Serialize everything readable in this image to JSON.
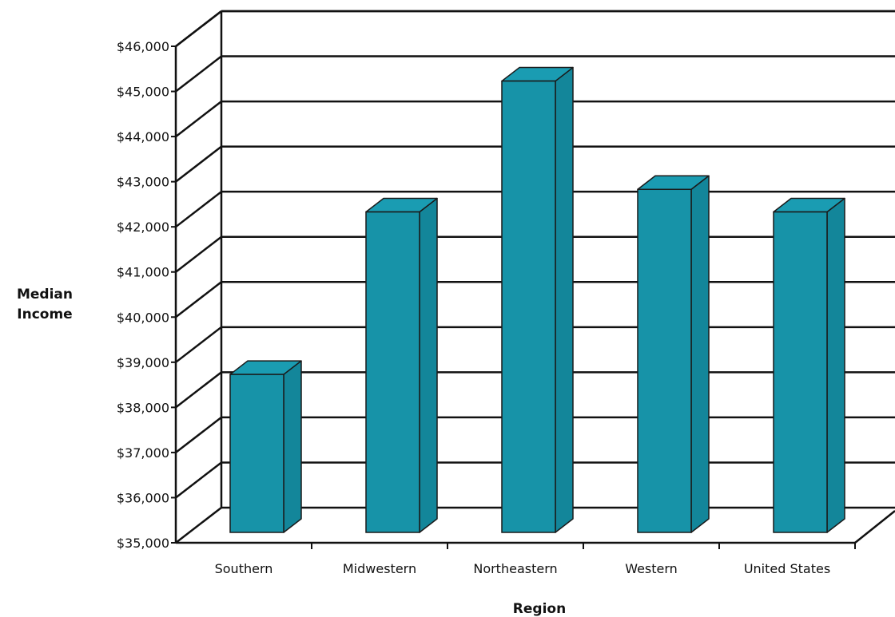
{
  "chart_data": {
    "type": "bar",
    "title": "",
    "xlabel": "Region",
    "ylabel": [
      "Median",
      "Income"
    ],
    "categories": [
      "Southern",
      "Midwestern",
      "Northeastern",
      "Western",
      "United States"
    ],
    "values": [
      38500,
      42100,
      45000,
      42600,
      42100
    ],
    "ylim": [
      35000,
      46000
    ],
    "yticks": [
      "$35,000",
      "$36,000",
      "$37,000",
      "$38,000",
      "$39,000",
      "$40,000",
      "$41,000",
      "$42,000",
      "$43,000",
      "$44,000",
      "$45,000",
      "$46,000"
    ],
    "grid": true,
    "legend": "none",
    "colors": {
      "bar_front": "#1793a8",
      "bar_top": "#1a9cb2",
      "bar_side": "#13869a",
      "outline": "#1a1a1a"
    }
  }
}
